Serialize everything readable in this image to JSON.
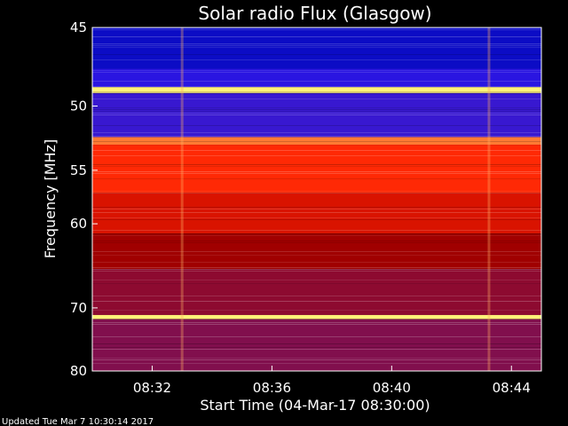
{
  "chart_data": {
    "type": "heatmap",
    "title": "Solar radio Flux (Glasgow)",
    "xlabel": "Start Time (04-Mar-17 08:30:00)",
    "ylabel": "Frequency [MHz]",
    "x_start": "08:30:00",
    "x_end": "08:45:00",
    "x_ticks": [
      "08:32",
      "08:36",
      "08:40",
      "08:44"
    ],
    "y_ticks": [
      45,
      50,
      55,
      60,
      70,
      80
    ],
    "y_range": [
      45,
      80
    ],
    "colormap": [
      "#000030",
      "#1010ff",
      "#6020a0",
      "#a00000",
      "#ff2000",
      "#ff9040",
      "#ffff80"
    ],
    "bands_mhz": [
      {
        "from": 45,
        "to": 47.5,
        "level": 0.12
      },
      {
        "from": 47.5,
        "to": 48.7,
        "level": 0.22
      },
      {
        "from": 48.7,
        "to": 49.1,
        "level": 0.98
      },
      {
        "from": 49.1,
        "to": 52.3,
        "level": 0.25
      },
      {
        "from": 52.3,
        "to": 52.9,
        "level": 0.8
      },
      {
        "from": 52.9,
        "to": 57,
        "level": 0.68
      },
      {
        "from": 57,
        "to": 61,
        "level": 0.6
      },
      {
        "from": 61,
        "to": 65,
        "level": 0.5
      },
      {
        "from": 65,
        "to": 71,
        "level": 0.45
      },
      {
        "from": 71,
        "to": 71.6,
        "level": 0.98
      },
      {
        "from": 71.6,
        "to": 80,
        "level": 0.42
      }
    ],
    "features": [
      {
        "type": "vertical-streak",
        "time": "08:33:00"
      },
      {
        "type": "vertical-streak",
        "time": "08:43:15"
      }
    ]
  },
  "footer": {
    "updated": "Updated Tue Mar  7 10:30:14 2017"
  }
}
